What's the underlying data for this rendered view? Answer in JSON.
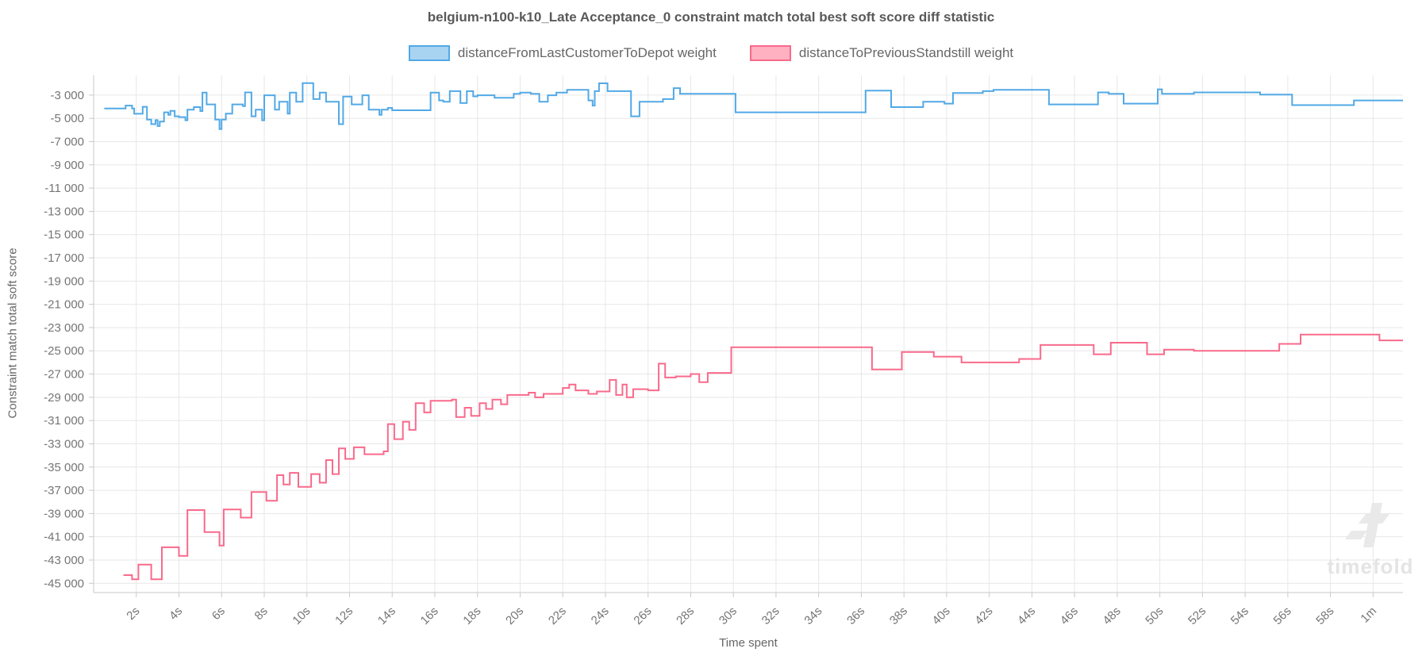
{
  "title": "belgium-n100-k10_Late Acceptance_0 constraint match total best soft score diff statistic",
  "watermark_text": "timefold",
  "legend": {
    "items": [
      {
        "label": "distanceFromLastCustomerToDepot weight",
        "fill": "#a8d4f2",
        "border": "#52a9e6"
      },
      {
        "label": "distanceToPreviousStandstill weight",
        "fill": "#ffb0c1",
        "border": "#f96a8b"
      }
    ]
  },
  "chart_data": {
    "type": "line",
    "step": true,
    "title": "belgium-n100-k10_Late Acceptance_0 constraint match total best soft score diff statistic",
    "xlabel": "Time spent",
    "ylabel": "Constraint match total soft score",
    "xlim": [
      0,
      61.4
    ],
    "ylim": [
      -45800,
      -1300
    ],
    "grid": true,
    "legend_position": "top",
    "x_tick_seconds": [
      2,
      4,
      6,
      8,
      10,
      12,
      14,
      16,
      18,
      20,
      22,
      24,
      26,
      28,
      30,
      32,
      34,
      36,
      38,
      40,
      42,
      44,
      46,
      48,
      50,
      52,
      54,
      56,
      58,
      60
    ],
    "x_tick_labels": [
      "2s",
      "4s",
      "6s",
      "8s",
      "10s",
      "12s",
      "14s",
      "16s",
      "18s",
      "20s",
      "22s",
      "24s",
      "26s",
      "28s",
      "30s",
      "32s",
      "34s",
      "36s",
      "38s",
      "40s",
      "42s",
      "44s",
      "46s",
      "48s",
      "50s",
      "52s",
      "54s",
      "56s",
      "58s",
      "1m"
    ],
    "y_ticks": [
      -3000,
      -5000,
      -7000,
      -9000,
      -11000,
      -13000,
      -15000,
      -17000,
      -19000,
      -21000,
      -23000,
      -25000,
      -27000,
      -29000,
      -31000,
      -33000,
      -35000,
      -37000,
      -39000,
      -41000,
      -43000,
      -45000
    ],
    "y_tick_labels": [
      "-3 000",
      "-5 000",
      "-7 000",
      "-9 000",
      "-11 000",
      "-13 000",
      "-15 000",
      "-17 000",
      "-19 000",
      "-21 000",
      "-23 000",
      "-25 000",
      "-27 000",
      "-29 000",
      "-31 000",
      "-33 000",
      "-35 000",
      "-37 000",
      "-39 000",
      "-41 000",
      "-43 000",
      "-45 000"
    ],
    "series": [
      {
        "name": "distanceFromLastCustomerToDepot weight",
        "color": "#52a9e6",
        "points": [
          [
            0.5,
            -4150
          ],
          [
            1.5,
            -3900
          ],
          [
            1.8,
            -4150
          ],
          [
            1.9,
            -4600
          ],
          [
            2.3,
            -4000
          ],
          [
            2.5,
            -5100
          ],
          [
            2.7,
            -5500
          ],
          [
            2.9,
            -5150
          ],
          [
            3.0,
            -5660
          ],
          [
            3.1,
            -5280
          ],
          [
            3.3,
            -4480
          ],
          [
            3.5,
            -4700
          ],
          [
            3.6,
            -4360
          ],
          [
            3.8,
            -4820
          ],
          [
            4.0,
            -4890
          ],
          [
            4.3,
            -5160
          ],
          [
            4.4,
            -4250
          ],
          [
            4.7,
            -4030
          ],
          [
            5.0,
            -4370
          ],
          [
            5.1,
            -2780
          ],
          [
            5.3,
            -3800
          ],
          [
            5.7,
            -5100
          ],
          [
            5.9,
            -5930
          ],
          [
            6.0,
            -5100
          ],
          [
            6.2,
            -4590
          ],
          [
            6.5,
            -3800
          ],
          [
            7.0,
            -3950
          ],
          [
            7.1,
            -2770
          ],
          [
            7.4,
            -4820
          ],
          [
            7.6,
            -4250
          ],
          [
            7.9,
            -5160
          ],
          [
            8.0,
            -3010
          ],
          [
            8.5,
            -4250
          ],
          [
            8.7,
            -3570
          ],
          [
            9.1,
            -4590
          ],
          [
            9.2,
            -2780
          ],
          [
            9.5,
            -3570
          ],
          [
            9.8,
            -1960
          ],
          [
            10.3,
            -3340
          ],
          [
            10.6,
            -2780
          ],
          [
            10.9,
            -3570
          ],
          [
            11.5,
            -5500
          ],
          [
            11.7,
            -3120
          ],
          [
            12.1,
            -3800
          ],
          [
            12.6,
            -3010
          ],
          [
            12.9,
            -4250
          ],
          [
            13.4,
            -4700
          ],
          [
            13.5,
            -4250
          ],
          [
            13.8,
            -4100
          ],
          [
            14.0,
            -4300
          ],
          [
            15.8,
            -2780
          ],
          [
            16.2,
            -3460
          ],
          [
            16.4,
            -3570
          ],
          [
            16.7,
            -2660
          ],
          [
            17.2,
            -3680
          ],
          [
            17.5,
            -2660
          ],
          [
            17.8,
            -3110
          ],
          [
            18.0,
            -3010
          ],
          [
            18.8,
            -3230
          ],
          [
            19.7,
            -2890
          ],
          [
            20.0,
            -2780
          ],
          [
            20.5,
            -2890
          ],
          [
            20.9,
            -3570
          ],
          [
            21.3,
            -3010
          ],
          [
            21.7,
            -2780
          ],
          [
            22.2,
            -2550
          ],
          [
            23.2,
            -3460
          ],
          [
            23.4,
            -3900
          ],
          [
            23.5,
            -2660
          ],
          [
            23.7,
            -1980
          ],
          [
            24.1,
            -2660
          ],
          [
            25.2,
            -4820
          ],
          [
            25.6,
            -3570
          ],
          [
            26.7,
            -3340
          ],
          [
            27.2,
            -2400
          ],
          [
            27.5,
            -2890
          ],
          [
            30.1,
            -4480
          ],
          [
            36.2,
            -2620
          ],
          [
            37.4,
            -4030
          ],
          [
            38.9,
            -3570
          ],
          [
            39.9,
            -3730
          ],
          [
            40.3,
            -2820
          ],
          [
            41.7,
            -2660
          ],
          [
            42.2,
            -2550
          ],
          [
            44.8,
            -3800
          ],
          [
            47.1,
            -2770
          ],
          [
            47.6,
            -2890
          ],
          [
            48.3,
            -3730
          ],
          [
            49.9,
            -2500
          ],
          [
            50.1,
            -2890
          ],
          [
            51.6,
            -2770
          ],
          [
            54.7,
            -2950
          ],
          [
            56.2,
            -3860
          ],
          [
            59.1,
            -3460
          ]
        ]
      },
      {
        "name": "distanceToPreviousStandstill weight",
        "color": "#f96a8b",
        "points": [
          [
            1.4,
            -44300
          ],
          [
            1.8,
            -44650
          ],
          [
            2.1,
            -43400
          ],
          [
            2.7,
            -44650
          ],
          [
            3.2,
            -41900
          ],
          [
            4.0,
            -42650
          ],
          [
            4.4,
            -38700
          ],
          [
            5.2,
            -40600
          ],
          [
            5.9,
            -41750
          ],
          [
            6.1,
            -38650
          ],
          [
            6.9,
            -39350
          ],
          [
            7.4,
            -37150
          ],
          [
            8.1,
            -37900
          ],
          [
            8.6,
            -35700
          ],
          [
            8.9,
            -36500
          ],
          [
            9.2,
            -35500
          ],
          [
            9.6,
            -36700
          ],
          [
            10.2,
            -35600
          ],
          [
            10.6,
            -36350
          ],
          [
            10.9,
            -34400
          ],
          [
            11.2,
            -35600
          ],
          [
            11.5,
            -33400
          ],
          [
            11.8,
            -34300
          ],
          [
            12.2,
            -33300
          ],
          [
            12.7,
            -33900
          ],
          [
            13.6,
            -33650
          ],
          [
            13.8,
            -31300
          ],
          [
            14.1,
            -32600
          ],
          [
            14.5,
            -31100
          ],
          [
            14.8,
            -31800
          ],
          [
            15.1,
            -29500
          ],
          [
            15.5,
            -30300
          ],
          [
            15.8,
            -29300
          ],
          [
            16.8,
            -29200
          ],
          [
            17.0,
            -30700
          ],
          [
            17.4,
            -29900
          ],
          [
            17.7,
            -30600
          ],
          [
            18.1,
            -29500
          ],
          [
            18.4,
            -30000
          ],
          [
            18.7,
            -29200
          ],
          [
            19.1,
            -29600
          ],
          [
            19.4,
            -28800
          ],
          [
            20.4,
            -28600
          ],
          [
            20.7,
            -29000
          ],
          [
            21.1,
            -28700
          ],
          [
            22.0,
            -28200
          ],
          [
            22.3,
            -27900
          ],
          [
            22.6,
            -28400
          ],
          [
            23.2,
            -28700
          ],
          [
            23.6,
            -28500
          ],
          [
            24.2,
            -27500
          ],
          [
            24.5,
            -28800
          ],
          [
            24.8,
            -27900
          ],
          [
            25.0,
            -29000
          ],
          [
            25.3,
            -28300
          ],
          [
            26.0,
            -28400
          ],
          [
            26.5,
            -26100
          ],
          [
            26.8,
            -27300
          ],
          [
            27.3,
            -27200
          ],
          [
            28.0,
            -27000
          ],
          [
            28.4,
            -27700
          ],
          [
            28.8,
            -26900
          ],
          [
            29.9,
            -24700
          ],
          [
            36.5,
            -26600
          ],
          [
            37.9,
            -25100
          ],
          [
            39.4,
            -25500
          ],
          [
            40.7,
            -26000
          ],
          [
            43.4,
            -25700
          ],
          [
            44.4,
            -24500
          ],
          [
            46.9,
            -25300
          ],
          [
            47.7,
            -24300
          ],
          [
            49.4,
            -25300
          ],
          [
            50.2,
            -24900
          ],
          [
            51.6,
            -25000
          ],
          [
            55.6,
            -24400
          ],
          [
            56.6,
            -23600
          ],
          [
            60.3,
            -24100
          ]
        ]
      }
    ]
  }
}
